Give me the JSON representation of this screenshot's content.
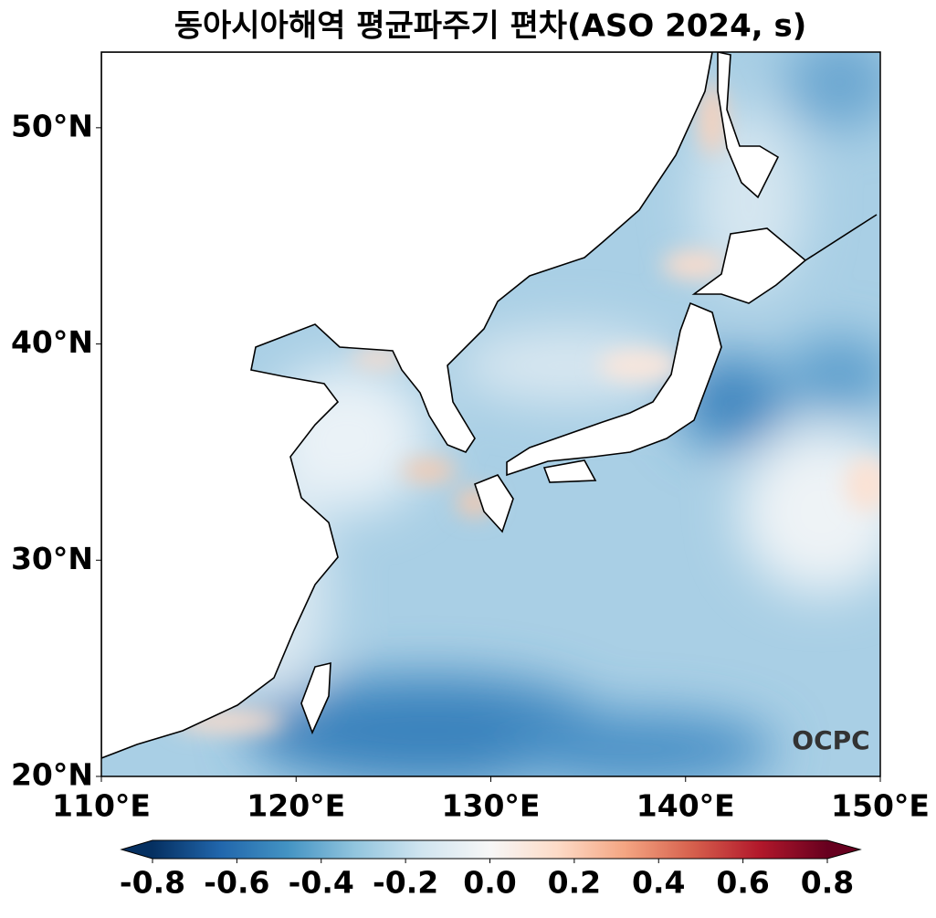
{
  "chart_data": {
    "type": "map",
    "title": "동아시아해역 평균파주기 편차(ASO 2024, s)",
    "xlim": [
      110,
      150
    ],
    "ylim": [
      20,
      53.5
    ],
    "xticks": [
      {
        "value": 110,
        "label": "110°E"
      },
      {
        "value": 120,
        "label": "120°E"
      },
      {
        "value": 130,
        "label": "130°E"
      },
      {
        "value": 140,
        "label": "140°E"
      },
      {
        "value": 150,
        "label": "150°E"
      }
    ],
    "yticks": [
      {
        "value": 20,
        "label": "20°N"
      },
      {
        "value": 30,
        "label": "30°N"
      },
      {
        "value": 40,
        "label": "40°N"
      },
      {
        "value": 50,
        "label": "50°N"
      }
    ],
    "colorbar": {
      "lim": [
        -0.8,
        0.8
      ],
      "ticks": [
        -0.8,
        -0.6,
        -0.4,
        -0.2,
        {
          "value": 0,
          "label": "0.0"
        },
        0.2,
        0.4,
        0.6,
        0.8
      ],
      "colors": [
        "#053061",
        "#2166ac",
        "#4393c3",
        "#92c5de",
        "#d1e5f0",
        "#f7f7f7",
        "#fddbc7",
        "#f4a582",
        "#d6604d",
        "#b2182b",
        "#67001f"
      ],
      "extend": "both"
    },
    "logo": "OCPC"
  }
}
